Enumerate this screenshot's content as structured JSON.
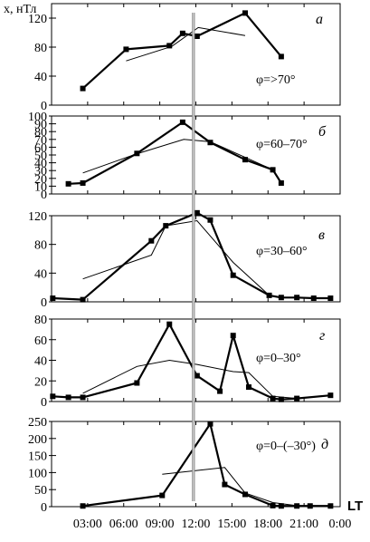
{
  "chart_data": {
    "type": "line",
    "y_axis_title": "x, нТл",
    "x_axis_title": "LT",
    "x_ticks": [
      {
        "h": 3,
        "label": "03:00"
      },
      {
        "h": 6,
        "label": "06:00"
      },
      {
        "h": 9,
        "label": "09:00"
      },
      {
        "h": 12,
        "label": "12:00"
      },
      {
        "h": 15,
        "label": "15:00"
      },
      {
        "h": 18,
        "label": "18:00"
      },
      {
        "h": 21,
        "label": "21:00"
      },
      {
        "h": 24,
        "label": "0:00"
      }
    ],
    "xlim": [
      0,
      24
    ],
    "reference_line_x": 11.8,
    "panels": [
      {
        "letter": "а",
        "annotation": "φ=>70°",
        "ylim": [
          0,
          140
        ],
        "yticks": [
          0,
          40,
          80,
          120
        ],
        "series": [
          {
            "style": "bold-square",
            "x": [
              2.6,
              6.2,
              9.8,
              10.9,
              12.1,
              16.1,
              19.1
            ],
            "y": [
              23,
              77,
              82,
              99,
              95,
              127,
              67
            ]
          },
          {
            "style": "thin",
            "x": [
              6.2,
              10.0,
              12.2,
              16.1
            ],
            "y": [
              61,
              81,
              107,
              96
            ]
          }
        ]
      },
      {
        "letter": "б",
        "annotation": "φ=60–70°",
        "ylim": [
          0,
          100
        ],
        "yticks": [
          0,
          10,
          20,
          30,
          40,
          50,
          60,
          70,
          80,
          90,
          100
        ],
        "series": [
          {
            "style": "bold-square",
            "x": [
              1.4,
              2.6,
              7.1,
              10.9,
              13.2,
              16.1,
              18.4,
              19.1
            ],
            "y": [
              13,
              14,
              52,
              92,
              66,
              44,
              31,
              14
            ]
          },
          {
            "style": "thin",
            "x": [
              2.6,
              7.0,
              11.0,
              13.2,
              16.1,
              18.4
            ],
            "y": [
              27,
              51,
              70,
              67,
              47,
              31
            ]
          }
        ]
      },
      {
        "letter": "в",
        "annotation": "φ=30–60°",
        "ylim": [
          0,
          120
        ],
        "yticks": [
          0,
          40,
          80,
          120
        ],
        "series": [
          {
            "style": "bold-square",
            "x": [
              0.1,
              2.6,
              8.3,
              9.5,
              12.1,
              13.2,
              15.1,
              18.1,
              19.1,
              20.4,
              21.8,
              23.2
            ],
            "y": [
              5,
              3,
              85,
              106,
              124,
              114,
              37,
              9,
              6,
              6,
              5,
              5
            ]
          },
          {
            "style": "thin",
            "x": [
              2.6,
              8.3,
              9.5,
              12.1,
              15.1,
              18.1,
              19.1
            ],
            "y": [
              32,
              65,
              106,
              113,
              55,
              9,
              6
            ]
          }
        ]
      },
      {
        "letter": "г",
        "annotation": "φ=0–30°",
        "ylim": [
          0,
          80
        ],
        "yticks": [
          0,
          20,
          40,
          60,
          80
        ],
        "series": [
          {
            "style": "bold-square",
            "x": [
              0.1,
              1.4,
              2.6,
              7.1,
              9.8,
              12.1,
              14.0,
              15.1,
              16.4,
              18.4,
              19.1,
              20.4,
              23.2
            ],
            "y": [
              5,
              4,
              4,
              18,
              75,
              25,
              10,
              64,
              14,
              3,
              2,
              3,
              6
            ]
          },
          {
            "style": "thin",
            "x": [
              2.6,
              7.1,
              9.8,
              12.1,
              15.1,
              16.4,
              18.4,
              20.4
            ],
            "y": [
              8,
              34,
              40,
              36,
              29,
              28,
              5,
              3
            ]
          }
        ]
      },
      {
        "letter": "д",
        "annotation": "φ=0–(–30°)",
        "ylim": [
          0,
          250
        ],
        "yticks": [
          0,
          50,
          100,
          150,
          200,
          250
        ],
        "series": [
          {
            "style": "bold-square",
            "x": [
              2.6,
              9.2,
              13.2,
              14.4,
              16.1,
              18.4,
              19.1,
              20.4,
              21.5,
              23.2
            ],
            "y": [
              2,
              33,
              243,
              65,
              36,
              3,
              2,
              2,
              2,
              2
            ]
          },
          {
            "style": "thin",
            "x": [
              9.2,
              14.4,
              16.1,
              18.4,
              20.4
            ],
            "y": [
              95,
              115,
              40,
              12,
              3
            ]
          }
        ]
      }
    ]
  }
}
